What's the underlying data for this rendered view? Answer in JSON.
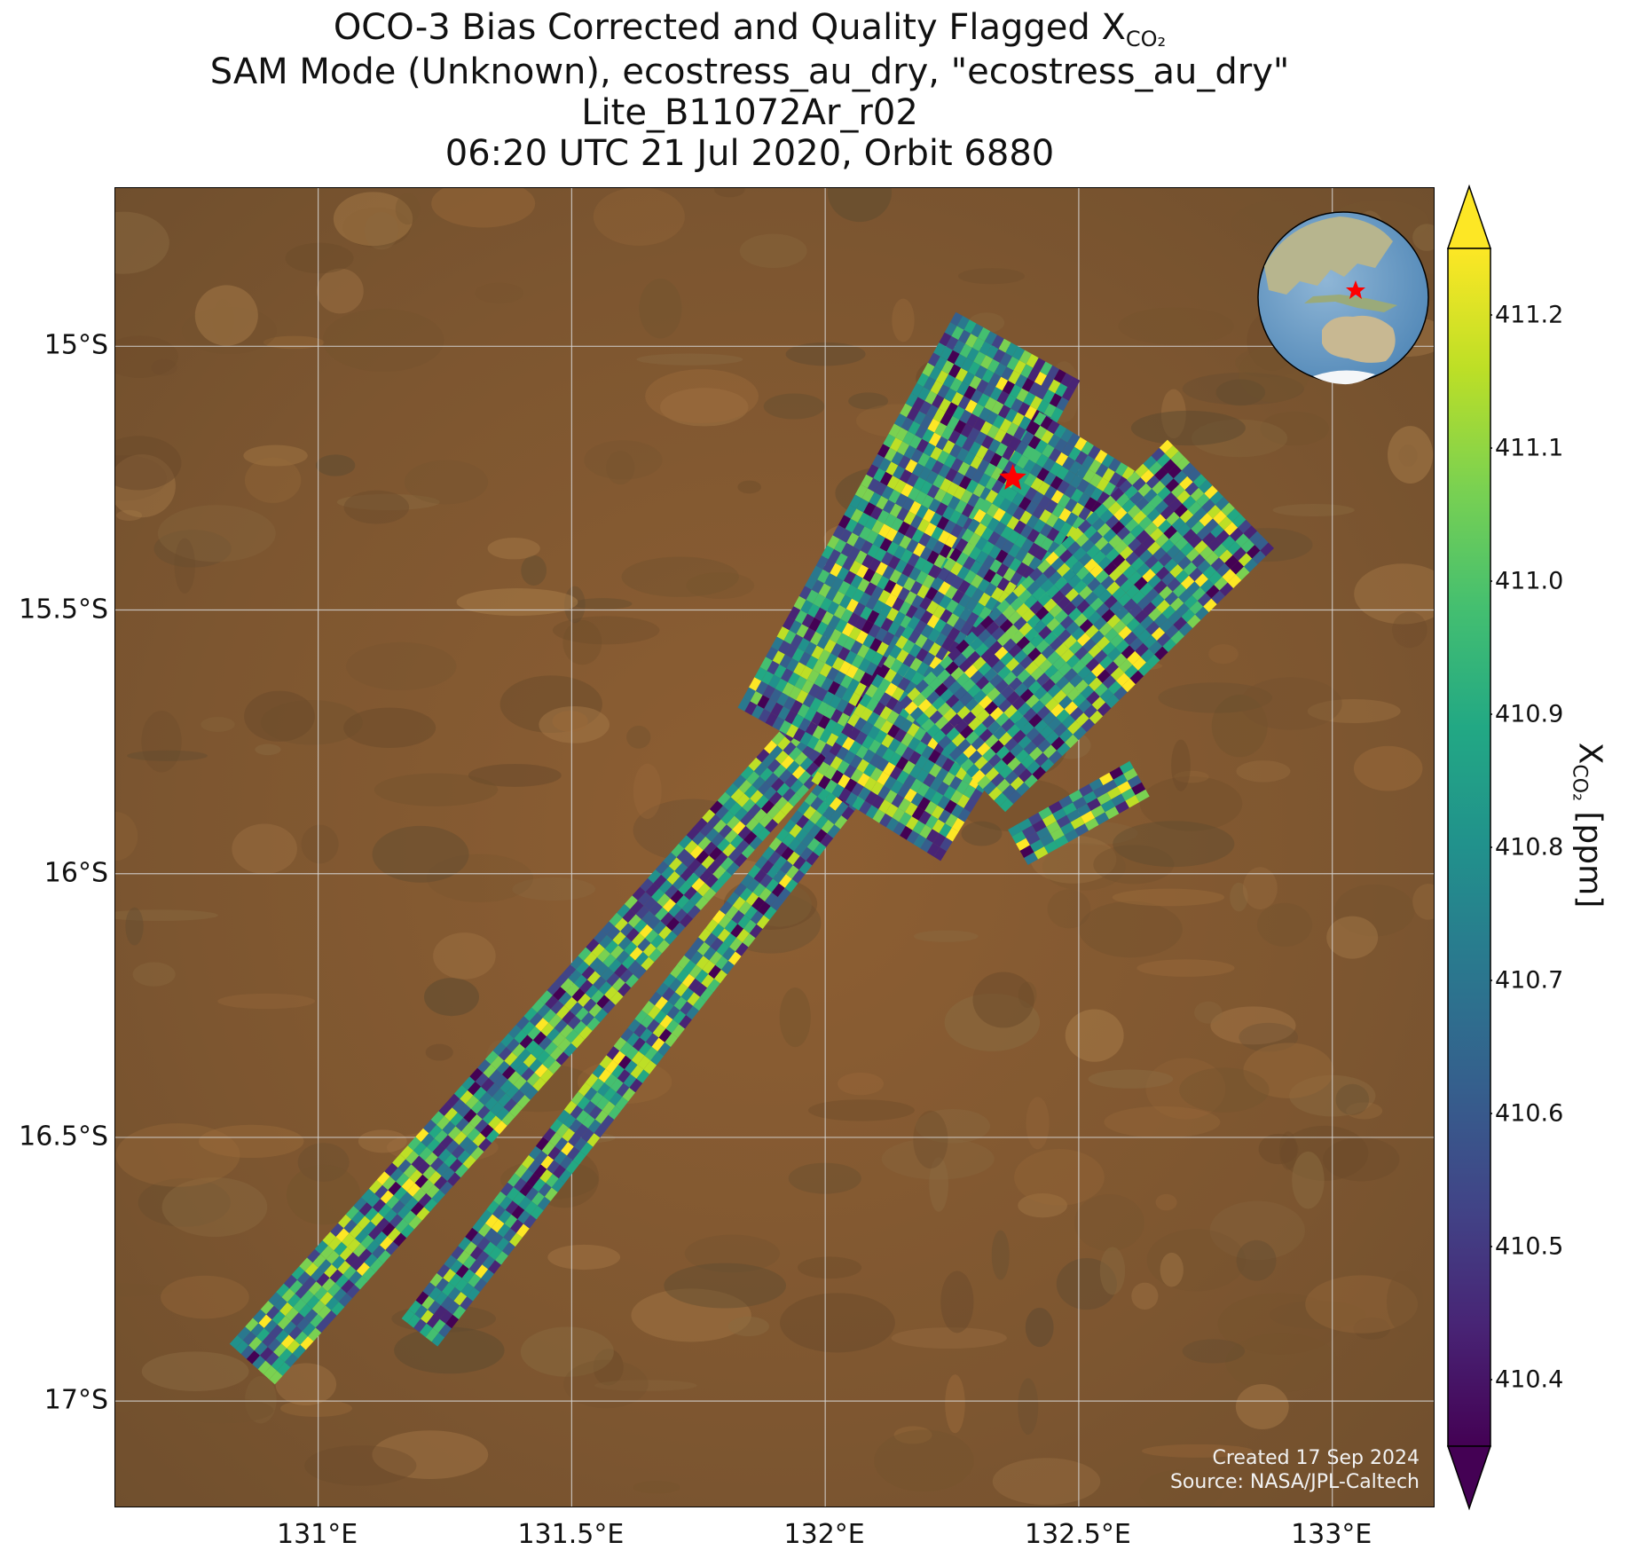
{
  "title": {
    "line1_prefix": "OCO-3 Bias Corrected and Quality Flagged X",
    "line1_sub": "CO₂",
    "line2": "SAM Mode (Unknown), ecostress_au_dry, \"ecostress_au_dry\"",
    "line3": "Lite_B11072Ar_r02",
    "line4": "06:20 UTC 21 Jul 2020, Orbit 6880"
  },
  "map": {
    "extent": {
      "lon_min": 130.6,
      "lon_max": 133.2,
      "lat_min": -17.2,
      "lat_max": -14.7
    },
    "lat_ticks": [
      {
        "value": -15.0,
        "label": "15°S"
      },
      {
        "value": -15.5,
        "label": "15.5°S"
      },
      {
        "value": -16.0,
        "label": "16°S"
      },
      {
        "value": -16.5,
        "label": "16.5°S"
      },
      {
        "value": -17.0,
        "label": "17°S"
      }
    ],
    "lon_ticks": [
      {
        "value": 131.0,
        "label": "131°E"
      },
      {
        "value": 131.5,
        "label": "131.5°E"
      },
      {
        "value": 132.0,
        "label": "132°E"
      },
      {
        "value": 132.5,
        "label": "132.5°E"
      },
      {
        "value": 133.0,
        "label": "133°E"
      }
    ],
    "gridlines": true,
    "background": "satellite imagery (brown arid terrain)",
    "target_marker": {
      "icon": "star",
      "color": "#ff0000",
      "lon": 132.37,
      "lat": -15.25
    },
    "inset": {
      "type": "globe",
      "marker": "star",
      "marker_color": "#ff0000"
    },
    "credits": {
      "line1": "Created 17 Sep 2024",
      "line2": "Source: NASA/JPL-Caltech"
    }
  },
  "colorbar": {
    "colormap": "viridis",
    "extend": "both",
    "vmin": 410.35,
    "vmax": 411.25,
    "ticks": [
      "410.4",
      "410.5",
      "410.6",
      "410.7",
      "410.8",
      "410.9",
      "411.0",
      "411.1",
      "411.2"
    ],
    "label_prefix": "X",
    "label_sub": "CO₂",
    "label_units": " [ppm]"
  },
  "chart_data": {
    "type": "heatmap",
    "title": "OCO-3 Bias Corrected and Quality Flagged XCO₂",
    "value_label": "XCO₂ [ppm]",
    "value_range": [
      410.35,
      411.25
    ],
    "swaths": [
      {
        "name": "swath-west",
        "start": [
          130.87,
          -16.93
        ],
        "end": [
          132.0,
          -15.72
        ],
        "width_deg": 0.12
      },
      {
        "name": "swath-middle",
        "start": [
          131.2,
          -16.87
        ],
        "end": [
          132.05,
          -15.82
        ],
        "width_deg": 0.09
      },
      {
        "name": "swath-north-1",
        "start": [
          131.95,
          -15.75
        ],
        "end": [
          132.38,
          -15.0
        ],
        "width_deg": 0.28
      },
      {
        "name": "swath-north-2",
        "start": [
          132.1,
          -15.9
        ],
        "end": [
          132.55,
          -15.2
        ],
        "width_deg": 0.3
      },
      {
        "name": "swath-north-3",
        "start": [
          132.25,
          -15.78
        ],
        "end": [
          132.78,
          -15.28
        ],
        "width_deg": 0.3
      },
      {
        "name": "swath-east-fragment",
        "start": [
          132.38,
          -15.95
        ],
        "end": [
          132.62,
          -15.82
        ],
        "width_deg": 0.08
      }
    ]
  }
}
